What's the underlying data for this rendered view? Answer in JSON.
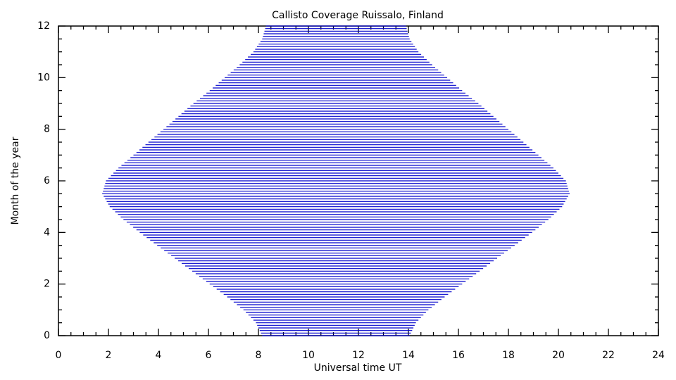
{
  "chart_data": {
    "type": "range-lines",
    "title": "Callisto Coverage Ruissalo, Finland",
    "x_label": "Universal time UT",
    "y_label": "Month of the year",
    "xlim": [
      0,
      24
    ],
    "xticks": [
      0,
      2,
      4,
      6,
      8,
      10,
      12,
      14,
      16,
      18,
      20,
      22,
      24
    ],
    "ylim": [
      0,
      12
    ],
    "yticks": [
      0,
      2,
      4,
      6,
      8,
      10,
      12
    ],
    "color": "#0000cc",
    "months": [
      0,
      0.1,
      0.2,
      0.3,
      0.4,
      0.5,
      0.6,
      0.7,
      0.8,
      0.9,
      1,
      1.1,
      1.2,
      1.3,
      1.4,
      1.5,
      1.6,
      1.7,
      1.8,
      1.9,
      2,
      2.1,
      2.2,
      2.3,
      2.4,
      2.5,
      2.6,
      2.7,
      2.8,
      2.9,
      3,
      3.1,
      3.2,
      3.3,
      3.4,
      3.5,
      3.6,
      3.7,
      3.8,
      3.9,
      4,
      4.1,
      4.2,
      4.3,
      4.4,
      4.5,
      4.6,
      4.7,
      4.8,
      4.9,
      5,
      5.1,
      5.2,
      5.3,
      5.4,
      5.5,
      5.6,
      5.7,
      5.8,
      5.9,
      6,
      6.1,
      6.2,
      6.3,
      6.4,
      6.5,
      6.6,
      6.7,
      6.8,
      6.9,
      7,
      7.1,
      7.2,
      7.3,
      7.4,
      7.5,
      7.6,
      7.7,
      7.8,
      7.9,
      8,
      8.1,
      8.2,
      8.3,
      8.4,
      8.5,
      8.6,
      8.7,
      8.8,
      8.9,
      9,
      9.1,
      9.2,
      9.3,
      9.4,
      9.5,
      9.6,
      9.7,
      9.8,
      9.9,
      10,
      10.1,
      10.2,
      10.3,
      10.4,
      10.5,
      10.6,
      10.7,
      10.8,
      10.9,
      11,
      11.1,
      11.2,
      11.3,
      11.4,
      11.5,
      11.6,
      11.7,
      11.8,
      11.9,
      12
    ],
    "start": [
      8.15,
      8.1,
      8.05,
      8.0,
      7.95,
      7.9,
      7.8,
      7.7,
      7.6,
      7.5,
      7.4,
      7.27,
      7.14,
      7.01,
      6.88,
      6.75,
      6.61,
      6.47,
      6.33,
      6.19,
      6.05,
      5.91,
      5.77,
      5.63,
      5.49,
      5.35,
      5.21,
      5.07,
      4.93,
      4.79,
      4.65,
      4.51,
      4.37,
      4.23,
      4.09,
      3.95,
      3.81,
      3.67,
      3.53,
      3.39,
      3.25,
      3.12,
      2.99,
      2.86,
      2.73,
      2.6,
      2.49,
      2.38,
      2.27,
      2.16,
      2.05,
      1.99,
      1.93,
      1.87,
      1.81,
      1.75,
      1.78,
      1.81,
      1.84,
      1.87,
      1.9,
      2.0,
      2.1,
      2.2,
      2.3,
      2.4,
      2.52,
      2.64,
      2.76,
      2.88,
      3.0,
      3.12,
      3.24,
      3.36,
      3.48,
      3.6,
      3.72,
      3.84,
      3.96,
      4.08,
      4.2,
      4.32,
      4.44,
      4.56,
      4.68,
      4.8,
      4.92,
      5.04,
      5.16,
      5.28,
      5.4,
      5.53,
      5.66,
      5.79,
      5.92,
      6.05,
      6.17,
      6.29,
      6.41,
      6.53,
      6.65,
      6.77,
      6.89,
      7.01,
      7.13,
      7.25,
      7.36,
      7.47,
      7.58,
      7.69,
      7.8,
      7.87,
      7.94,
      8.01,
      8.08,
      8.15,
      8.18,
      8.21,
      8.24,
      8.27,
      8.3
    ],
    "end": [
      14.05,
      14.1,
      14.15,
      14.2,
      14.25,
      14.3,
      14.4,
      14.5,
      14.6,
      14.7,
      14.8,
      14.93,
      15.06,
      15.19,
      15.32,
      15.45,
      15.59,
      15.73,
      15.87,
      16.01,
      16.15,
      16.29,
      16.43,
      16.57,
      16.71,
      16.85,
      16.99,
      17.13,
      17.27,
      17.41,
      17.55,
      17.69,
      17.83,
      17.97,
      18.11,
      18.25,
      18.39,
      18.53,
      18.67,
      18.81,
      18.95,
      19.08,
      19.21,
      19.34,
      19.47,
      19.6,
      19.71,
      19.82,
      19.93,
      20.04,
      20.15,
      20.21,
      20.27,
      20.33,
      20.39,
      20.45,
      20.42,
      20.39,
      20.36,
      20.33,
      20.3,
      20.2,
      20.1,
      20.0,
      19.9,
      19.8,
      19.68,
      19.56,
      19.44,
      19.32,
      19.2,
      19.08,
      18.96,
      18.84,
      18.72,
      18.6,
      18.48,
      18.36,
      18.24,
      18.12,
      18.0,
      17.88,
      17.76,
      17.64,
      17.52,
      17.4,
      17.28,
      17.16,
      17.04,
      16.92,
      16.8,
      16.67,
      16.54,
      16.41,
      16.28,
      16.15,
      16.03,
      15.91,
      15.79,
      15.67,
      15.55,
      15.43,
      15.31,
      15.19,
      15.07,
      14.95,
      14.84,
      14.73,
      14.62,
      14.51,
      14.4,
      14.33,
      14.26,
      14.19,
      14.12,
      14.05,
      14.02,
      13.99,
      13.96,
      13.93,
      13.9
    ]
  }
}
